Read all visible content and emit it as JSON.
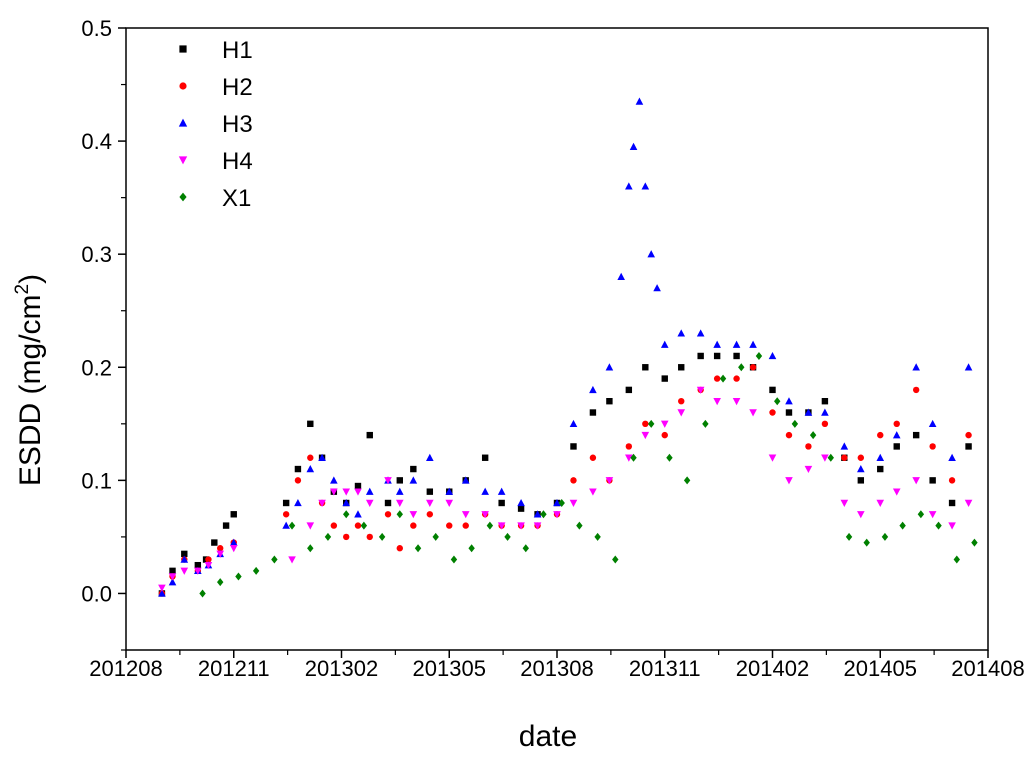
{
  "chart_data": {
    "type": "scatter",
    "xlabel": "date",
    "ylabel_main": "ESDD (mg/cm",
    "ylabel_sup": "2",
    "ylabel_close": ")",
    "xlim": [
      "2012-08",
      "2014-08"
    ],
    "ylim": [
      -0.05,
      0.5
    ],
    "x_ticks": [
      "201208",
      "201211",
      "201302",
      "201305",
      "201308",
      "201311",
      "201402",
      "201405",
      "201408"
    ],
    "y_ticks": [
      "0.0",
      "0.1",
      "0.2",
      "0.3",
      "0.4",
      "0.5"
    ],
    "grid": false,
    "legend_position": "top-left",
    "series": [
      {
        "name": "H1",
        "marker": "square",
        "color": "#000000",
        "x": [
          "2012-09-01",
          "2012-09-10",
          "2012-09-20",
          "2012-10-01",
          "2012-10-08",
          "2012-10-15",
          "2012-10-25",
          "2012-11-01",
          "2012-12-15",
          "2012-12-25",
          "2013-01-05",
          "2013-01-15",
          "2013-01-25",
          "2013-02-05",
          "2013-02-15",
          "2013-02-25",
          "2013-03-10",
          "2013-03-20",
          "2013-04-01",
          "2013-04-15",
          "2013-05-01",
          "2013-05-15",
          "2013-06-01",
          "2013-06-15",
          "2013-07-01",
          "2013-07-15",
          "2013-08-01",
          "2013-08-15",
          "2013-09-01",
          "2013-09-15",
          "2013-10-01",
          "2013-10-15",
          "2013-11-01",
          "2013-11-15",
          "2013-12-01",
          "2013-12-15",
          "2014-01-01",
          "2014-01-15",
          "2014-02-01",
          "2014-02-15",
          "2014-03-01",
          "2014-03-15",
          "2014-04-01",
          "2014-04-15",
          "2014-05-01",
          "2014-05-15",
          "2014-06-01",
          "2014-06-15",
          "2014-07-01",
          "2014-07-15"
        ],
        "y": [
          0.0,
          0.02,
          0.035,
          0.025,
          0.03,
          0.045,
          0.06,
          0.07,
          0.08,
          0.11,
          0.15,
          0.12,
          0.09,
          0.08,
          0.095,
          0.14,
          0.08,
          0.1,
          0.11,
          0.09,
          0.09,
          0.1,
          0.12,
          0.08,
          0.075,
          0.07,
          0.08,
          0.13,
          0.16,
          0.17,
          0.18,
          0.2,
          0.19,
          0.2,
          0.21,
          0.21,
          0.21,
          0.2,
          0.18,
          0.16,
          0.16,
          0.17,
          0.12,
          0.1,
          0.11,
          0.13,
          0.14,
          0.1,
          0.08,
          0.13
        ]
      },
      {
        "name": "H2",
        "marker": "circle",
        "color": "#ff0000",
        "x": [
          "2012-09-01",
          "2012-09-10",
          "2012-09-20",
          "2012-10-01",
          "2012-10-10",
          "2012-10-20",
          "2012-11-01",
          "2012-12-15",
          "2012-12-25",
          "2013-01-05",
          "2013-01-15",
          "2013-01-25",
          "2013-02-05",
          "2013-02-15",
          "2013-02-25",
          "2013-03-10",
          "2013-03-20",
          "2013-04-01",
          "2013-04-15",
          "2013-05-01",
          "2013-05-15",
          "2013-06-01",
          "2013-06-15",
          "2013-07-01",
          "2013-07-15",
          "2013-08-01",
          "2013-08-15",
          "2013-09-01",
          "2013-09-15",
          "2013-10-01",
          "2013-10-15",
          "2013-11-01",
          "2013-11-15",
          "2013-12-01",
          "2013-12-15",
          "2014-01-01",
          "2014-01-15",
          "2014-02-01",
          "2014-02-15",
          "2014-03-01",
          "2014-03-15",
          "2014-04-01",
          "2014-04-15",
          "2014-05-01",
          "2014-05-15",
          "2014-06-01",
          "2014-06-15",
          "2014-07-01",
          "2014-07-15"
        ],
        "y": [
          0.0,
          0.015,
          0.03,
          0.02,
          0.03,
          0.04,
          0.045,
          0.07,
          0.1,
          0.12,
          0.08,
          0.06,
          0.05,
          0.06,
          0.05,
          0.07,
          0.04,
          0.06,
          0.07,
          0.06,
          0.06,
          0.07,
          0.06,
          0.06,
          0.06,
          0.07,
          0.1,
          0.12,
          0.1,
          0.13,
          0.15,
          0.14,
          0.17,
          0.18,
          0.19,
          0.19,
          0.2,
          0.16,
          0.14,
          0.13,
          0.15,
          0.12,
          0.12,
          0.14,
          0.15,
          0.18,
          0.13,
          0.1,
          0.14
        ]
      },
      {
        "name": "H3",
        "marker": "triangle-up",
        "color": "#0000ff",
        "x": [
          "2012-09-01",
          "2012-09-10",
          "2012-09-20",
          "2012-10-01",
          "2012-10-10",
          "2012-10-20",
          "2012-11-01",
          "2012-12-15",
          "2012-12-25",
          "2013-01-05",
          "2013-01-15",
          "2013-01-25",
          "2013-02-05",
          "2013-02-15",
          "2013-02-25",
          "2013-03-10",
          "2013-03-20",
          "2013-04-01",
          "2013-04-15",
          "2013-05-01",
          "2013-05-15",
          "2013-06-01",
          "2013-06-15",
          "2013-07-01",
          "2013-07-15",
          "2013-08-01",
          "2013-08-15",
          "2013-09-01",
          "2013-09-15",
          "2013-09-25",
          "2013-10-01",
          "2013-10-05",
          "2013-10-10",
          "2013-10-15",
          "2013-10-20",
          "2013-10-25",
          "2013-11-01",
          "2013-11-15",
          "2013-12-01",
          "2013-12-15",
          "2014-01-01",
          "2014-01-15",
          "2014-02-01",
          "2014-02-15",
          "2014-03-01",
          "2014-03-15",
          "2014-04-01",
          "2014-04-15",
          "2014-05-01",
          "2014-05-15",
          "2014-06-01",
          "2014-06-15",
          "2014-07-01",
          "2014-07-15"
        ],
        "y": [
          0.0,
          0.01,
          0.03,
          0.02,
          0.025,
          0.035,
          0.045,
          0.06,
          0.08,
          0.11,
          0.12,
          0.1,
          0.08,
          0.07,
          0.09,
          0.1,
          0.09,
          0.1,
          0.12,
          0.09,
          0.1,
          0.09,
          0.09,
          0.08,
          0.07,
          0.08,
          0.15,
          0.18,
          0.2,
          0.28,
          0.36,
          0.395,
          0.435,
          0.36,
          0.3,
          0.27,
          0.22,
          0.23,
          0.23,
          0.22,
          0.22,
          0.22,
          0.21,
          0.17,
          0.16,
          0.16,
          0.13,
          0.11,
          0.12,
          0.14,
          0.2,
          0.15,
          0.12,
          0.2
        ]
      },
      {
        "name": "H4",
        "marker": "triangle-down",
        "color": "#ff00ff",
        "x": [
          "2012-09-01",
          "2012-09-10",
          "2012-09-20",
          "2012-10-01",
          "2012-10-10",
          "2012-10-20",
          "2012-11-01",
          "2012-12-20",
          "2013-01-05",
          "2013-01-15",
          "2013-01-25",
          "2013-02-05",
          "2013-02-15",
          "2013-02-25",
          "2013-03-10",
          "2013-03-20",
          "2013-04-01",
          "2013-04-15",
          "2013-05-01",
          "2013-05-15",
          "2013-06-01",
          "2013-06-15",
          "2013-07-01",
          "2013-07-15",
          "2013-08-01",
          "2013-08-15",
          "2013-09-01",
          "2013-09-15",
          "2013-10-01",
          "2013-10-15",
          "2013-11-01",
          "2013-11-15",
          "2013-12-01",
          "2013-12-15",
          "2014-01-01",
          "2014-01-15",
          "2014-02-01",
          "2014-02-15",
          "2014-03-01",
          "2014-03-15",
          "2014-04-01",
          "2014-04-15",
          "2014-05-01",
          "2014-05-15",
          "2014-06-01",
          "2014-06-15",
          "2014-07-01",
          "2014-07-15"
        ],
        "y": [
          0.005,
          0.015,
          0.02,
          0.02,
          0.025,
          0.035,
          0.04,
          0.03,
          0.06,
          0.08,
          0.09,
          0.09,
          0.09,
          0.08,
          0.1,
          0.08,
          0.07,
          0.08,
          0.08,
          0.07,
          0.07,
          0.06,
          0.06,
          0.06,
          0.07,
          0.08,
          0.09,
          0.1,
          0.12,
          0.14,
          0.15,
          0.16,
          0.18,
          0.17,
          0.17,
          0.16,
          0.12,
          0.1,
          0.11,
          0.12,
          0.08,
          0.07,
          0.08,
          0.09,
          0.1,
          0.07,
          0.06,
          0.08
        ]
      },
      {
        "name": "X1",
        "marker": "diamond",
        "color": "#008000",
        "x": [
          "2012-10-05",
          "2012-10-20",
          "2012-11-05",
          "2012-11-20",
          "2012-12-05",
          "2012-12-20",
          "2013-01-05",
          "2013-01-20",
          "2013-02-05",
          "2013-02-20",
          "2013-03-05",
          "2013-03-20",
          "2013-04-05",
          "2013-04-20",
          "2013-05-05",
          "2013-05-20",
          "2013-06-05",
          "2013-06-20",
          "2013-07-05",
          "2013-07-20",
          "2013-08-05",
          "2013-08-20",
          "2013-09-05",
          "2013-09-20",
          "2013-10-05",
          "2013-10-20",
          "2013-11-05",
          "2013-11-20",
          "2013-12-05",
          "2013-12-20",
          "2014-01-05",
          "2014-01-20",
          "2014-02-05",
          "2014-02-20",
          "2014-03-05",
          "2014-03-20",
          "2014-04-05",
          "2014-04-20",
          "2014-05-05",
          "2014-05-20",
          "2014-06-05",
          "2014-06-20",
          "2014-07-05",
          "2014-07-20"
        ],
        "y": [
          0.0,
          0.01,
          0.015,
          0.02,
          0.03,
          0.06,
          0.04,
          0.05,
          0.07,
          0.06,
          0.05,
          0.07,
          0.04,
          0.05,
          0.03,
          0.04,
          0.06,
          0.05,
          0.04,
          0.07,
          0.08,
          0.06,
          0.05,
          0.03,
          0.12,
          0.15,
          0.12,
          0.1,
          0.15,
          0.19,
          0.2,
          0.21,
          0.17,
          0.15,
          0.14,
          0.12,
          0.05,
          0.045,
          0.05,
          0.06,
          0.07,
          0.06,
          0.03,
          0.045
        ]
      }
    ]
  }
}
